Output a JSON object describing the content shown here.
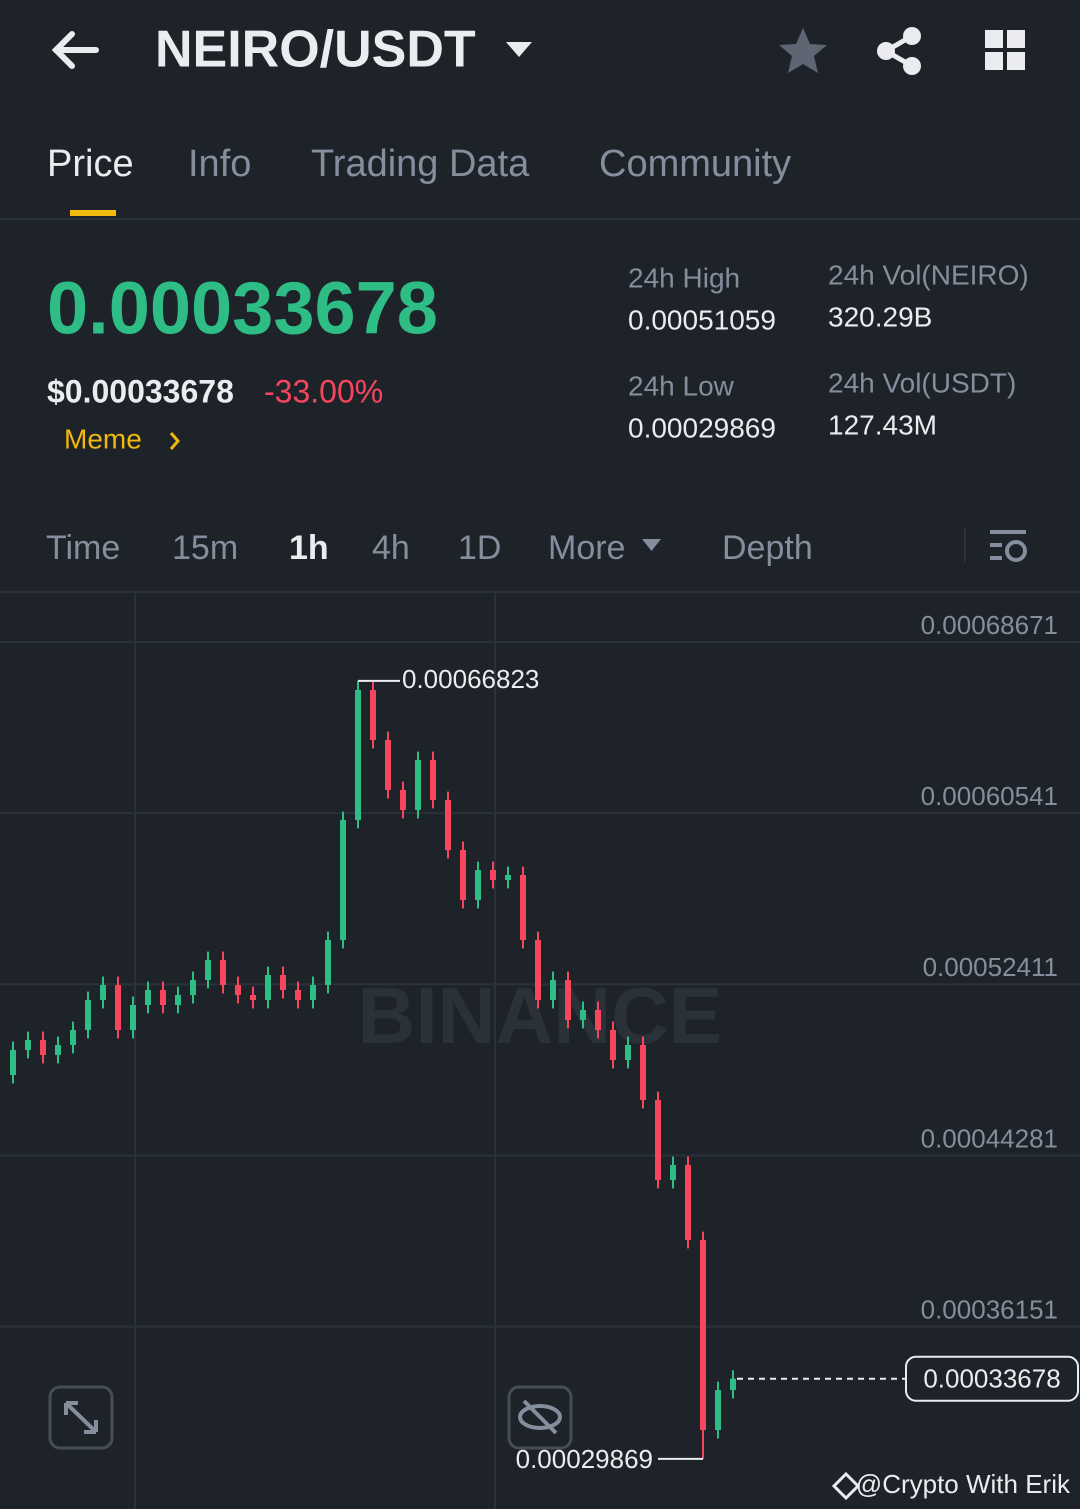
{
  "header": {
    "pair": "NEIRO/USDT"
  },
  "tabs": [
    "Price",
    "Info",
    "Trading Data",
    "Community"
  ],
  "ticker": {
    "price": "0.00033678",
    "usd_price": "$0.00033678",
    "change": "-33.00%",
    "tag": "Meme",
    "stats": [
      {
        "label": "24h High",
        "value": "0.00051059"
      },
      {
        "label": "24h Vol(NEIRO)",
        "value": "320.29B"
      },
      {
        "label": "24h Low",
        "value": "0.00029869"
      },
      {
        "label": "24h Vol(USDT)",
        "value": "127.43M"
      }
    ]
  },
  "intervals": [
    "Time",
    "15m",
    "1h",
    "4h",
    "1D",
    "More",
    "Depth"
  ],
  "chart_data": {
    "type": "candlestick",
    "watermark": "BINANCE",
    "up_color": "#2ebd85",
    "down_color": "#f6465d",
    "open": [
      0.00048104,
      0.00049291,
      0.00049766,
      0.00049054,
      0.00049529,
      0.00050241,
      0.00051666,
      0.00052379,
      0.00050241,
      0.00051429,
      0.00052141,
      0.00051429,
      0.00051904,
      0.00052616,
      0.00053566,
      0.00052379,
      0.00051904,
      0.00051666,
      0.00052854,
      0.00052141,
      0.00051666,
      0.00052379,
      0.00054516,
      0.00060216,
      0.00066391,
      0.00064016,
      0.00061641,
      0.00060691,
      0.00063066,
      0.00061166,
      0.00058791,
      0.00056416,
      0.00057841,
      0.00057366,
      0.00057604,
      0.00054516,
      0.00051666,
      0.00052616,
      0.00050716,
      0.00051191,
      0.00050241,
      0.00048816,
      0.00049529,
      0.00046916,
      0.00043116,
      0.00043829,
      0.00040266,
      0.00031241,
      0.00033141
    ],
    "high": [
      0.00049691,
      0.00050166,
      0.00050166,
      0.00049929,
      0.00050641,
      0.00052066,
      0.00052779,
      0.00052779,
      0.00051829,
      0.00052541,
      0.00052541,
      0.00052304,
      0.00053016,
      0.00053966,
      0.00053966,
      0.00052779,
      0.00052304,
      0.00053254,
      0.00053254,
      0.00052541,
      0.00052779,
      0.00054916,
      0.00060616,
      0.00066823,
      0.00066791,
      0.00064416,
      0.00062041,
      0.00063466,
      0.00063466,
      0.00061566,
      0.00059191,
      0.00058241,
      0.00058241,
      0.00058004,
      0.00058004,
      0.00054916,
      0.00053016,
      0.00053016,
      0.00051591,
      0.00051591,
      0.00050641,
      0.00049929,
      0.00049929,
      0.00047316,
      0.00044229,
      0.00044229,
      0.00040666,
      0.00033541,
      0.00034078
    ],
    "low": [
      0.00047704,
      0.00048891,
      0.00048654,
      0.00048654,
      0.00049129,
      0.00049841,
      0.00051266,
      0.00049841,
      0.00049841,
      0.00051029,
      0.00051029,
      0.00051029,
      0.00051504,
      0.00052216,
      0.00051979,
      0.00051504,
      0.00051266,
      0.00051266,
      0.00051741,
      0.00051266,
      0.00051266,
      0.00051979,
      0.00054116,
      0.00059816,
      0.00063616,
      0.00061241,
      0.00060291,
      0.00060291,
      0.00060766,
      0.00058391,
      0.00056016,
      0.00056016,
      0.00056966,
      0.00056966,
      0.00054116,
      0.00051266,
      0.00051266,
      0.00050316,
      0.00050316,
      0.00049841,
      0.00048416,
      0.00048416,
      0.00046516,
      0.00042716,
      0.00042716,
      0.00039866,
      0.00029869,
      0.00030841,
      0.00032741
    ],
    "close": [
      0.00049291,
      0.00049766,
      0.00049054,
      0.00049529,
      0.00050241,
      0.00051666,
      0.00052379,
      0.00050241,
      0.00051429,
      0.00052141,
      0.00051429,
      0.00051904,
      0.00052616,
      0.00053566,
      0.00052379,
      0.00051904,
      0.00051666,
      0.00052854,
      0.00052141,
      0.00051666,
      0.00052379,
      0.00054516,
      0.00060216,
      0.00066391,
      0.00064016,
      0.00061641,
      0.00060691,
      0.00063066,
      0.00061166,
      0.00058791,
      0.00056416,
      0.00057841,
      0.00057366,
      0.00057604,
      0.00054516,
      0.00051666,
      0.00052616,
      0.00050716,
      0.00051191,
      0.00050241,
      0.00048816,
      0.00049529,
      0.00046916,
      0.00043116,
      0.00043829,
      0.00040266,
      0.00031241,
      0.00033141,
      0.00033678
    ],
    "ylim": [
      0.00027489,
      0.00071046
    ],
    "yticks": [
      0.00068671,
      0.00060541,
      0.00052411,
      0.00044281,
      0.00036151
    ],
    "grid": true
  },
  "footer": {
    "credit": "@Crypto With Erik"
  }
}
